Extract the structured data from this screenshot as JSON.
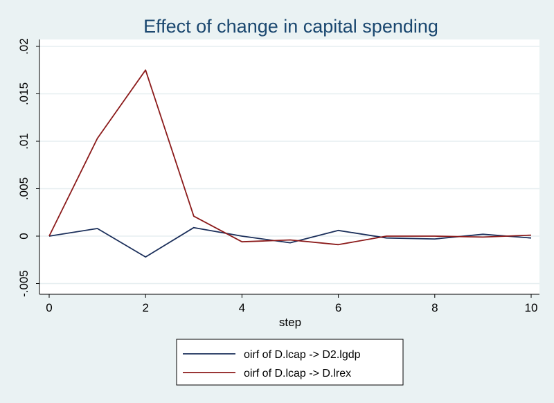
{
  "chart_data": {
    "type": "line",
    "title": "Effect of change in capital spending",
    "xlabel": "step",
    "ylabel": "",
    "xlim": [
      0,
      10
    ],
    "ylim": [
      -0.005,
      0.021
    ],
    "x_ticks": [
      0,
      2,
      4,
      6,
      8,
      10
    ],
    "x_tick_labels": [
      "0",
      "2",
      "4",
      "6",
      "8",
      "10"
    ],
    "y_ticks": [
      -0.005,
      0,
      0.005,
      0.01,
      0.015,
      0.02
    ],
    "y_tick_labels": [
      "-.005",
      "0",
      ".005",
      ".01",
      ".015",
      ".02"
    ],
    "grid": true,
    "legend_position": "bottom",
    "x": [
      0,
      1,
      2,
      3,
      4,
      5,
      6,
      7,
      8,
      9,
      10
    ],
    "series": [
      {
        "name": "oirf of D.lcap -> D2.lgdp",
        "color": "#1a2e5a",
        "values": [
          0,
          0.0008,
          -0.0022,
          0.0009,
          0.0,
          -0.0007,
          0.0006,
          -0.0002,
          -0.0003,
          0.0002,
          -0.0002
        ]
      },
      {
        "name": "oirf of D.lcap -> D.lrex",
        "color": "#8b1a1a",
        "values": [
          0,
          0.0103,
          0.0175,
          0.0021,
          -0.0006,
          -0.0004,
          -0.0009,
          0.0,
          0.0,
          -0.0001,
          0.0001
        ]
      }
    ]
  }
}
